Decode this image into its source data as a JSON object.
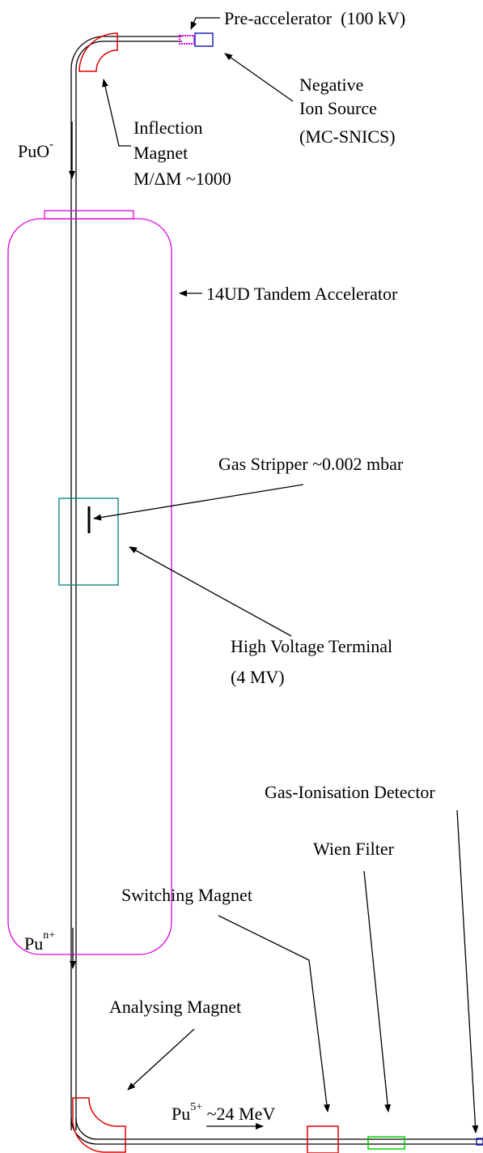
{
  "labels": {
    "pre_accelerator": "Pre-accelerator  (100 kV)",
    "ion_source": [
      "Negative",
      "Ion Source",
      "(MC-SNICS)"
    ],
    "inflection_magnet": [
      "Inflection",
      "Magnet",
      "M/ΔM ~1000"
    ],
    "puo": {
      "base": "PuO",
      "sup": "-"
    },
    "tandem": "14UD Tandem Accelerator",
    "gas_stripper": "Gas Stripper ~0.002 mbar",
    "terminal": [
      "High Voltage Terminal",
      "(4 MV)"
    ],
    "detector": "Gas-Ionisation Detector",
    "wien_filter": "Wien Filter",
    "switching_magnet": "Switching Magnet",
    "pu_n": {
      "base": "Pu",
      "sup": "n+"
    },
    "analysing_magnet": "Analysing Magnet",
    "pu_5": {
      "base": "Pu",
      "sup": "5+",
      "rest": " ~24 MeV"
    }
  }
}
